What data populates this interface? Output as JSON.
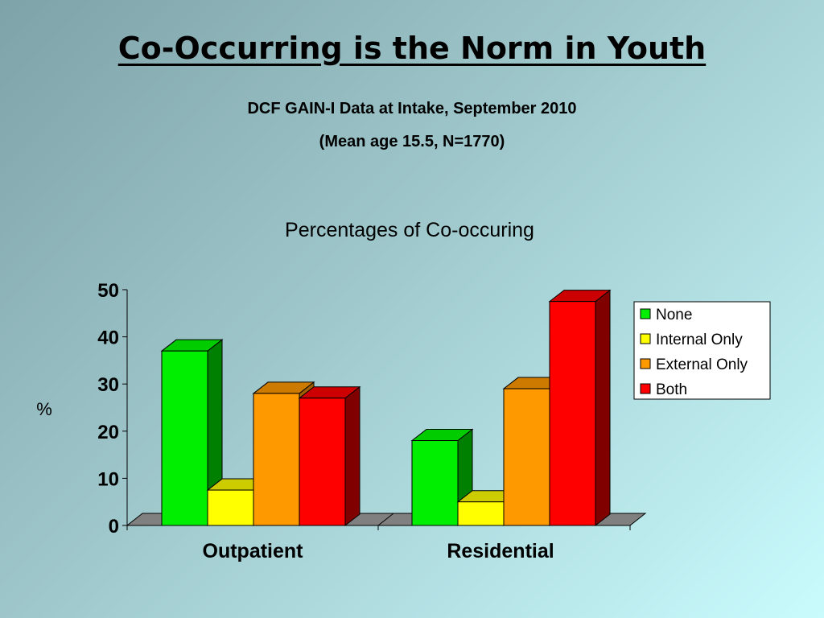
{
  "slide": {
    "title": "Co-Occurring is the Norm in Youth",
    "subtitle_line1": "DCF GAIN-I Data at Intake, September 2010",
    "subtitle_line2": "(Mean age 15.5, N=1770)"
  },
  "chart_data": {
    "type": "bar",
    "title": "Percentages of Co-occuring",
    "xlabel": "",
    "ylabel": "%",
    "ylim": [
      0,
      50
    ],
    "yticks": [
      0,
      10,
      20,
      30,
      40,
      50
    ],
    "categories": [
      "Outpatient",
      "Residential"
    ],
    "series": [
      {
        "name": "None",
        "values": [
          37,
          18
        ],
        "color": "#00ee00",
        "side": "#008000",
        "top": "#00cc00"
      },
      {
        "name": "Internal Only",
        "values": [
          7.5,
          5
        ],
        "color": "#ffff00",
        "side": "#a0a000",
        "top": "#cccc00"
      },
      {
        "name": "External Only",
        "values": [
          28,
          29
        ],
        "color": "#ff9900",
        "side": "#a06000",
        "top": "#cc7a00"
      },
      {
        "name": "Both",
        "values": [
          27,
          47.5
        ],
        "color": "#ff0000",
        "side": "#800000",
        "top": "#cc0000"
      }
    ],
    "legend_position": "right",
    "grid": false
  }
}
